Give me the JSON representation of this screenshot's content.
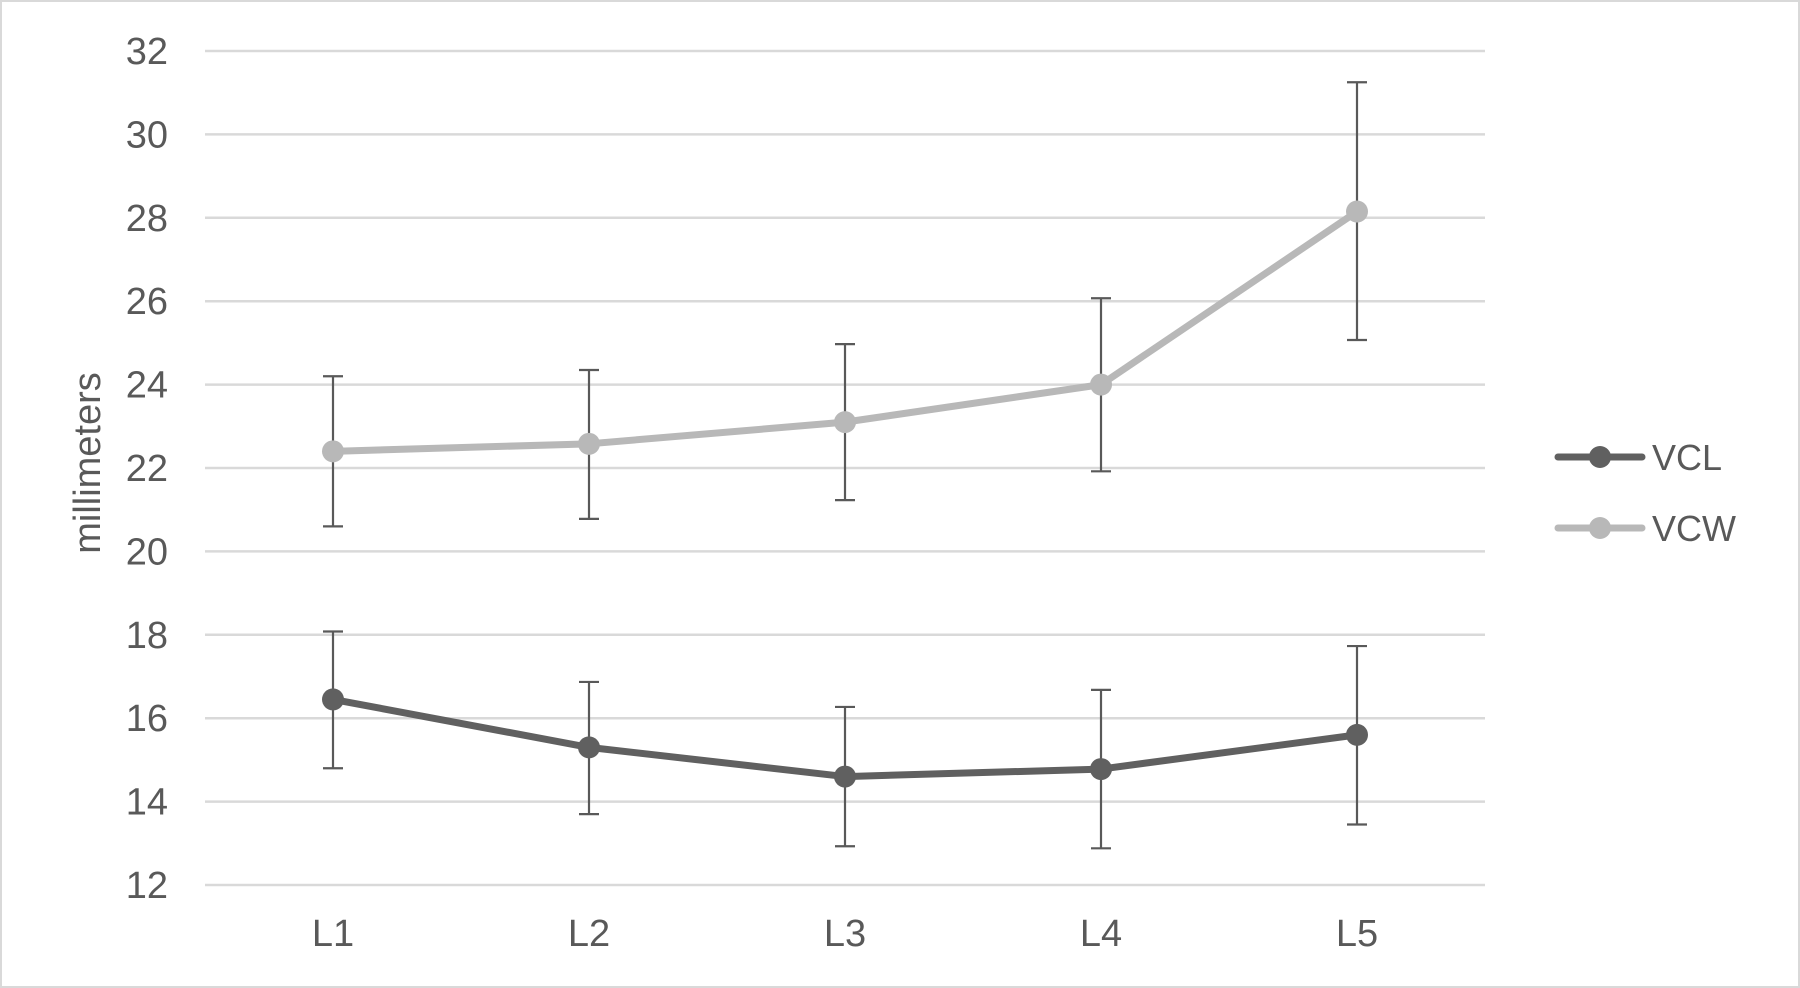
{
  "chart_data": {
    "type": "line",
    "categories": [
      "L1",
      "L2",
      "L3",
      "L4",
      "L5"
    ],
    "ylabel": "millimeters",
    "xlabel": "",
    "title": "",
    "ylim": [
      12,
      32
    ],
    "yticks": [
      12,
      14,
      16,
      18,
      20,
      22,
      24,
      26,
      28,
      30,
      32
    ],
    "grid": true,
    "legend_position": "right",
    "series": [
      {
        "name": "VCL",
        "color": "#606060",
        "values": [
          16.45,
          15.3,
          14.6,
          14.78,
          15.6
        ],
        "error_low": [
          14.8,
          13.7,
          12.93,
          12.88,
          13.45
        ],
        "error_high": [
          18.08,
          16.87,
          16.27,
          16.68,
          17.73
        ]
      },
      {
        "name": "VCW",
        "color": "#b8b8b8",
        "values": [
          22.4,
          22.58,
          23.1,
          24.0,
          28.15
        ],
        "error_low": [
          20.6,
          20.78,
          21.23,
          21.92,
          25.07
        ],
        "error_high": [
          24.2,
          24.35,
          24.97,
          26.07,
          31.25
        ]
      }
    ]
  }
}
